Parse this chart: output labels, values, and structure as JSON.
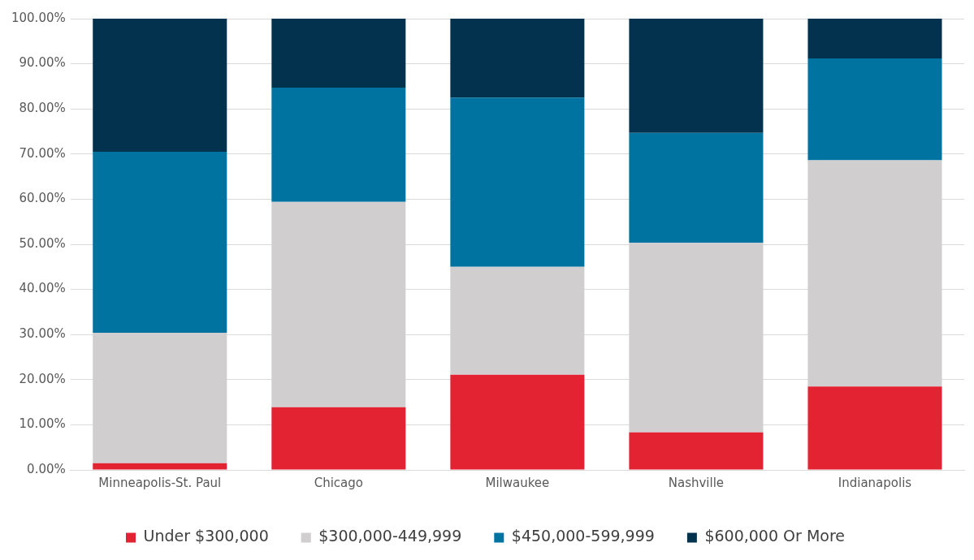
{
  "chart_data": {
    "type": "bar",
    "stacked": true,
    "categories": [
      "Minneapolis-St. Paul",
      "Chicago",
      "Milwaukee",
      "Nashville",
      "Indianapolis"
    ],
    "series": [
      {
        "name": "Under $300,000",
        "color": "#e32232",
        "values": [
          1.5,
          13.9,
          21.1,
          8.3,
          18.5
        ]
      },
      {
        "name": "$300,000-449,999",
        "color": "#d0cecf",
        "values": [
          28.9,
          45.5,
          23.9,
          42.0,
          50.1
        ]
      },
      {
        "name": "$450,000-599,999",
        "color": "#0073a0",
        "values": [
          40.1,
          25.3,
          37.5,
          24.4,
          22.6
        ]
      },
      {
        "name": "$600,000 Or More",
        "color": "#03324f",
        "values": [
          29.5,
          15.3,
          17.5,
          25.3,
          8.8
        ]
      }
    ],
    "ylim": [
      0,
      100
    ],
    "yticks": [
      {
        "value": 0,
        "label": "0.00%"
      },
      {
        "value": 10,
        "label": "10.00%"
      },
      {
        "value": 20,
        "label": "20.00%"
      },
      {
        "value": 30,
        "label": "30.00%"
      },
      {
        "value": 40,
        "label": "40.00%"
      },
      {
        "value": 50,
        "label": "50.00%"
      },
      {
        "value": 60,
        "label": "60.00%"
      },
      {
        "value": 70,
        "label": "70.00%"
      },
      {
        "value": 80,
        "label": "80.00%"
      },
      {
        "value": 90,
        "label": "90.00%"
      },
      {
        "value": 100,
        "label": "100.00%"
      }
    ],
    "grid": "y",
    "legend": "bottom"
  }
}
